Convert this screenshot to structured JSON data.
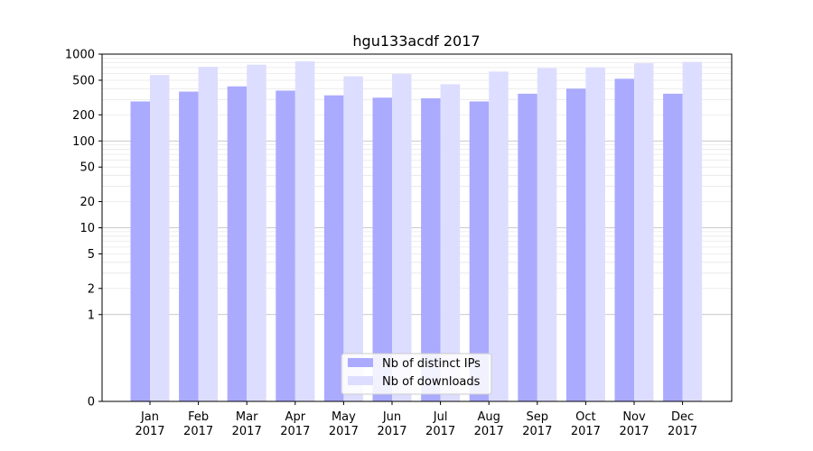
{
  "chart_data": {
    "type": "bar",
    "title": "hgu133acdf 2017",
    "xlabel": "",
    "ylabel": "",
    "y_scale": "symlog",
    "ylim": [
      0,
      1000
    ],
    "y_ticks": [
      {
        "value": 0,
        "label": "0"
      },
      {
        "value": 1,
        "label": "1"
      },
      {
        "value": 2,
        "label": "2"
      },
      {
        "value": 5,
        "label": "5"
      },
      {
        "value": 10,
        "label": "10"
      },
      {
        "value": 20,
        "label": "20"
      },
      {
        "value": 50,
        "label": "50"
      },
      {
        "value": 100,
        "label": "100"
      },
      {
        "value": 200,
        "label": "200"
      },
      {
        "value": 500,
        "label": "500"
      },
      {
        "value": 1000,
        "label": "1000"
      }
    ],
    "categories": [
      {
        "month": "Jan",
        "year": "2017"
      },
      {
        "month": "Feb",
        "year": "2017"
      },
      {
        "month": "Mar",
        "year": "2017"
      },
      {
        "month": "Apr",
        "year": "2017"
      },
      {
        "month": "May",
        "year": "2017"
      },
      {
        "month": "Jun",
        "year": "2017"
      },
      {
        "month": "Jul",
        "year": "2017"
      },
      {
        "month": "Aug",
        "year": "2017"
      },
      {
        "month": "Sep",
        "year": "2017"
      },
      {
        "month": "Oct",
        "year": "2017"
      },
      {
        "month": "Nov",
        "year": "2017"
      },
      {
        "month": "Dec",
        "year": "2017"
      }
    ],
    "series": [
      {
        "name": "Nb of distinct IPs",
        "color": "#aaaaff",
        "values": [
          285,
          370,
          425,
          380,
          335,
          315,
          310,
          285,
          350,
          400,
          520,
          350
        ]
      },
      {
        "name": "Nb of downloads",
        "color": "#ddddff",
        "values": [
          575,
          715,
          755,
          825,
          555,
          590,
          450,
          630,
          690,
          705,
          785,
          815
        ]
      }
    ],
    "legend_position": "bottom-center",
    "grid": true
  }
}
